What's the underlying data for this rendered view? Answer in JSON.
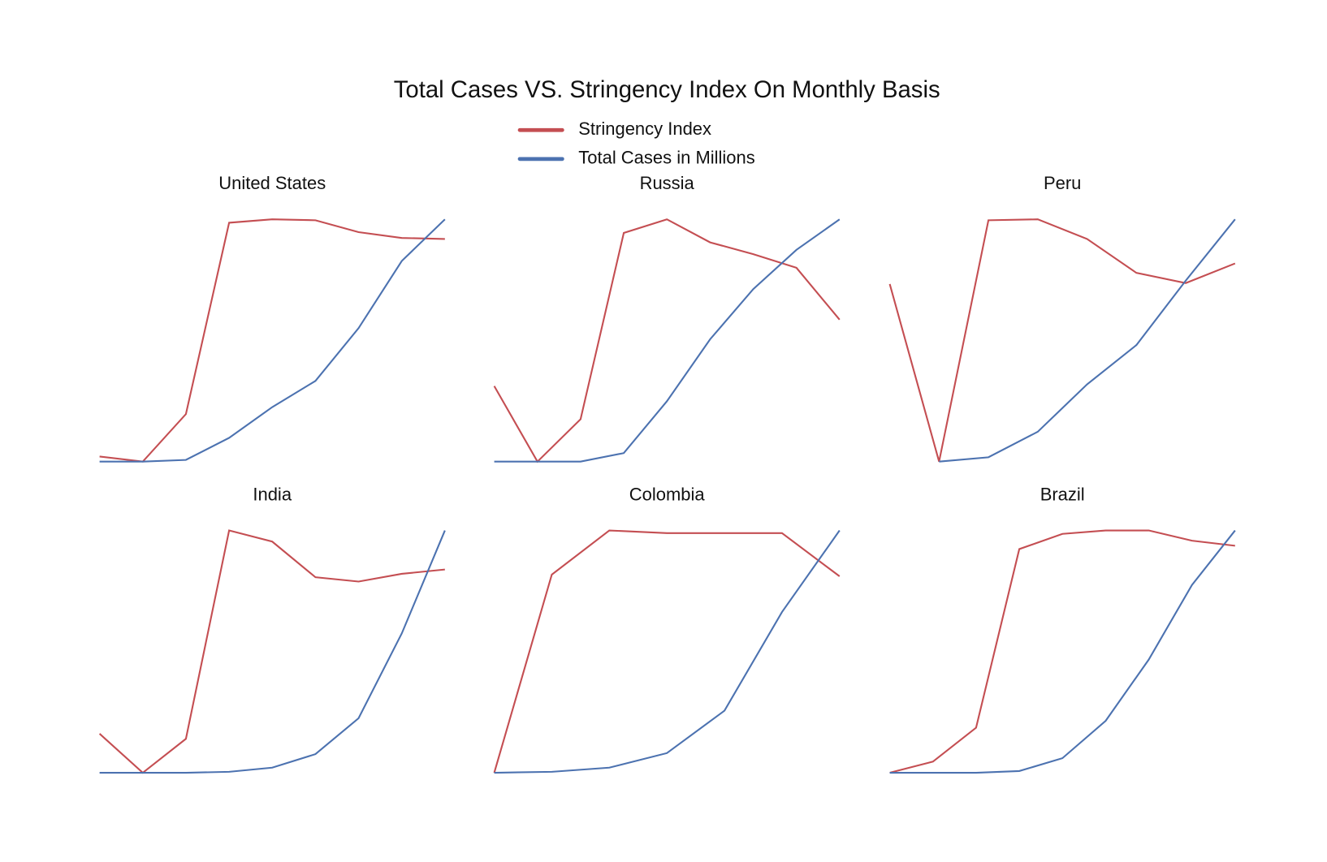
{
  "title": "Total Cases VS. Stringency Index On Monthly Basis",
  "chart_data": [
    {
      "type": "line",
      "title": "United States",
      "categories": [
        null,
        null,
        null,
        null,
        null,
        null,
        null,
        null,
        null
      ],
      "ylim": [
        0,
        1
      ],
      "series": [
        {
          "name": "Stringency Index",
          "color": "#c44e52",
          "values": [
            0.021,
            0,
            0.196,
            0.986,
            1,
            0.996,
            0.947,
            0.923,
            0.919
          ]
        },
        {
          "name": "Total Cases in Millions",
          "color": "#4c72b0",
          "values": [
            0,
            0,
            0.007,
            0.098,
            0.225,
            0.333,
            0.551,
            0.828,
            1
          ]
        }
      ]
    },
    {
      "type": "line",
      "title": "Russia",
      "categories": [
        null,
        null,
        null,
        null,
        null,
        null,
        null,
        null,
        null
      ],
      "ylim": [
        0,
        1
      ],
      "series": [
        {
          "name": "Stringency Index",
          "color": "#c44e52",
          "values": [
            0.312,
            0,
            0.175,
            0.944,
            1,
            0.905,
            0.856,
            0.8,
            0.586
          ]
        },
        {
          "name": "Total Cases in Millions",
          "color": "#4c72b0",
          "values": [
            0,
            0,
            0,
            0.035,
            0.249,
            0.505,
            0.712,
            0.874,
            1
          ]
        }
      ]
    },
    {
      "type": "line",
      "title": "Peru",
      "categories": [
        null,
        null,
        null,
        null,
        null,
        null,
        null,
        null
      ],
      "ylim": [
        0,
        1
      ],
      "series": [
        {
          "name": "Stringency Index",
          "color": "#c44e52",
          "values": [
            0.733,
            0,
            0.996,
            1,
            0.919,
            0.779,
            0.737,
            0.818
          ]
        },
        {
          "name": "Total Cases in Millions",
          "color": "#4c72b0",
          "values": [
            null,
            0,
            0.018,
            0.123,
            0.319,
            0.481,
            0.747,
            1
          ]
        }
      ]
    },
    {
      "type": "line",
      "title": "India",
      "categories": [
        null,
        null,
        null,
        null,
        null,
        null,
        null,
        null,
        null
      ],
      "ylim": [
        0,
        1
      ],
      "series": [
        {
          "name": "Stringency Index",
          "color": "#c44e52",
          "values": [
            0.161,
            0,
            0.14,
            1,
            0.954,
            0.807,
            0.789,
            0.821,
            0.839
          ]
        },
        {
          "name": "Total Cases in Millions",
          "color": "#4c72b0",
          "values": [
            0,
            0,
            0,
            0.004,
            0.021,
            0.077,
            0.225,
            0.575,
            1
          ]
        }
      ]
    },
    {
      "type": "line",
      "title": "Colombia",
      "categories": [
        null,
        null,
        null,
        null,
        null,
        null,
        null
      ],
      "ylim": [
        0,
        1
      ],
      "series": [
        {
          "name": "Stringency Index",
          "color": "#c44e52",
          "values": [
            0,
            0.818,
            1,
            0.989,
            0.989,
            0.989,
            0.811
          ]
        },
        {
          "name": "Total Cases in Millions",
          "color": "#4c72b0",
          "values": [
            0,
            0.004,
            0.021,
            0.081,
            0.256,
            0.663,
            1
          ]
        }
      ]
    },
    {
      "type": "line",
      "title": "Brazil",
      "categories": [
        null,
        null,
        null,
        null,
        null,
        null,
        null,
        null,
        null
      ],
      "ylim": [
        0,
        1
      ],
      "series": [
        {
          "name": "Stringency Index",
          "color": "#c44e52",
          "values": [
            0,
            0.046,
            0.186,
            0.923,
            0.986,
            1,
            1,
            0.958,
            0.937
          ]
        },
        {
          "name": "Total Cases in Millions",
          "color": "#4c72b0",
          "values": [
            0,
            0,
            0,
            0.007,
            0.06,
            0.214,
            0.467,
            0.775,
            1
          ]
        }
      ]
    }
  ]
}
